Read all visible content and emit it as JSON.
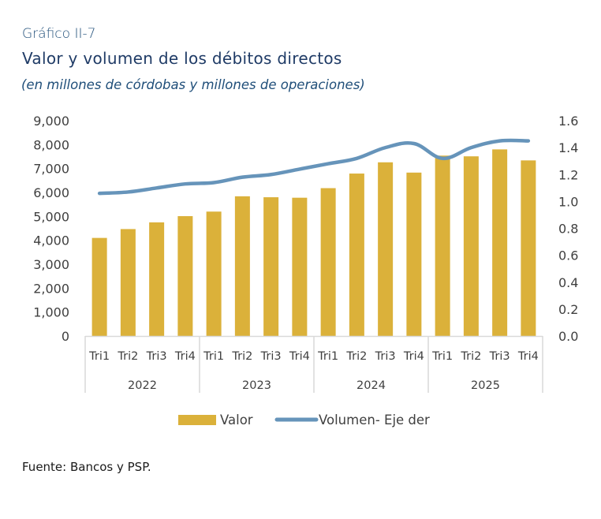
{
  "header": {
    "kicker": "Gráfico II-7",
    "title": "Valor y volumen de los débitos directos",
    "subtitle": "(en millones de córdobas y millones de operaciones)"
  },
  "footer": {
    "source": "Fuente: Bancos y PSP."
  },
  "colors": {
    "bar": "#DBB13A",
    "line": "#6694BA",
    "axis": "#D9D9D9"
  },
  "chart_data": {
    "type": "bar",
    "title": "Valor y volumen de los débitos directos",
    "subtitle": "(en millones de córdobas y millones de operaciones)",
    "categories": [
      "Tri1",
      "Tri2",
      "Tri3",
      "Tri4",
      "Tri1",
      "Tri2",
      "Tri3",
      "Tri4",
      "Tri1",
      "Tri2",
      "Tri3",
      "Tri4",
      "Tri1",
      "Tri2",
      "Tri3",
      "Tri4"
    ],
    "groups": [
      {
        "label": "2022",
        "count": 4
      },
      {
        "label": "2023",
        "count": 4
      },
      {
        "label": "2024",
        "count": 4
      },
      {
        "label": "2025",
        "count": 4
      }
    ],
    "series": [
      {
        "name": "Valor",
        "type": "bar",
        "axis": "left",
        "values": [
          4100,
          4470,
          4750,
          5010,
          5200,
          5840,
          5800,
          5780,
          6180,
          6790,
          7260,
          6830,
          7540,
          7510,
          7800,
          7340
        ]
      },
      {
        "name": "Volumen- Eje der",
        "type": "line",
        "axis": "right",
        "values": [
          1.06,
          1.07,
          1.1,
          1.13,
          1.14,
          1.18,
          1.2,
          1.24,
          1.28,
          1.32,
          1.4,
          1.43,
          1.32,
          1.4,
          1.45,
          1.45
        ]
      }
    ],
    "y_left": {
      "min": 0,
      "max": 9000,
      "ticks": [
        "0",
        "1,000",
        "2,000",
        "3,000",
        "4,000",
        "5,000",
        "6,000",
        "7,000",
        "8,000",
        "9,000"
      ]
    },
    "y_right": {
      "min": 0,
      "max": 1.6,
      "ticks": [
        "0.0",
        "0.2",
        "0.4",
        "0.6",
        "0.8",
        "1.0",
        "1.2",
        "1.4",
        "1.6"
      ]
    },
    "xlabel": "",
    "ylabel": "",
    "grid": false,
    "legend": {
      "position": "bottom",
      "items": [
        "Valor",
        "Volumen- Eje der"
      ]
    }
  }
}
